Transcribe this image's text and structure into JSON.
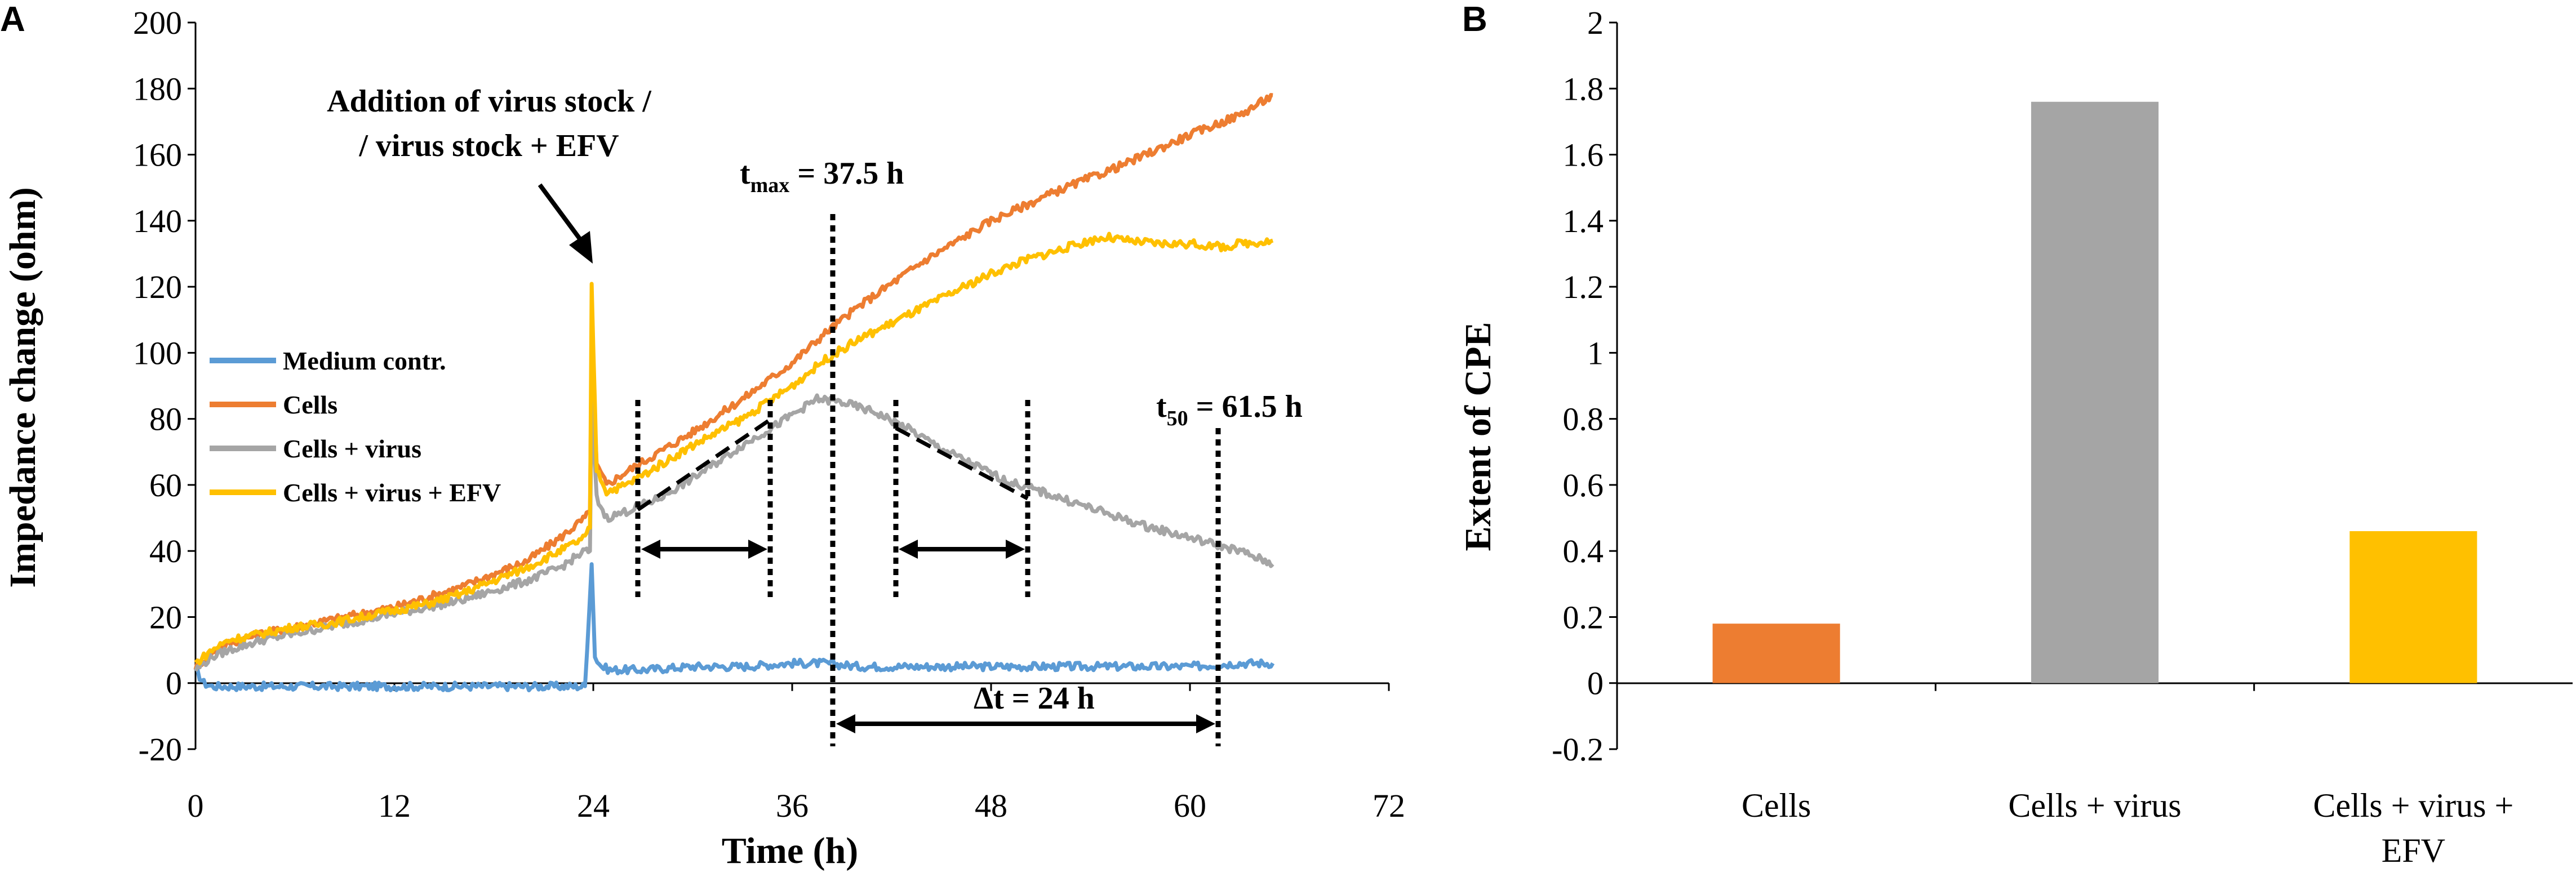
{
  "chart_data": [
    {
      "panel": "A",
      "type": "line",
      "xlabel": "Time (h)",
      "ylabel": "Impedance change (ohm)",
      "xlim": [
        0,
        72
      ],
      "ylim": [
        -20,
        200
      ],
      "xticks": [
        "0",
        "12",
        "24",
        "36",
        "48",
        "60",
        "72"
      ],
      "yticks": [
        "-20",
        "0",
        "20",
        "40",
        "60",
        "80",
        "100",
        "120",
        "140",
        "160",
        "180",
        "200"
      ],
      "legend_position": "middle-left",
      "series": [
        {
          "name": "Medium contr.",
          "color": "#5B9BD5",
          "x": [
            0,
            0.5,
            1,
            2,
            4,
            6,
            8,
            10,
            12,
            14,
            16,
            18,
            20,
            22,
            23.5,
            23.9,
            24.1,
            24.5,
            25,
            27,
            30,
            33,
            36,
            38,
            40,
            44,
            48,
            52,
            56,
            60,
            63,
            65
          ],
          "y": [
            4,
            0,
            -1,
            -1,
            -1,
            -1,
            -1,
            -1,
            -1,
            -1,
            -1,
            -1,
            -1,
            -1,
            -1,
            36,
            8,
            5,
            4,
            4,
            5,
            5,
            6,
            6,
            5,
            5,
            5,
            5,
            5,
            5,
            6,
            6
          ]
        },
        {
          "name": "Cells",
          "color": "#ED7D31",
          "x": [
            0,
            1,
            2,
            4,
            6,
            8,
            10,
            12,
            14,
            16,
            18,
            20,
            22,
            23.5,
            23.8,
            23.9,
            24.2,
            24.8,
            26,
            28,
            30,
            33,
            36,
            38,
            40,
            44,
            48,
            52,
            56,
            60,
            63,
            65
          ],
          "y": [
            5,
            9,
            12,
            15,
            17,
            19,
            21,
            23,
            26,
            29,
            33,
            37,
            44,
            50,
            52,
            103,
            66,
            60,
            64,
            70,
            76,
            86,
            97,
            106,
            114,
            128,
            140,
            149,
            157,
            166,
            172,
            178
          ]
        },
        {
          "name": "Cells + virus",
          "color": "#A5A5A5",
          "x": [
            0,
            1,
            2,
            4,
            6,
            8,
            10,
            12,
            14,
            16,
            18,
            20,
            22,
            23.5,
            23.8,
            23.9,
            24.2,
            24.8,
            26,
            28,
            30,
            33,
            35,
            37.5,
            39,
            41,
            43,
            45,
            47,
            49,
            51,
            54,
            57,
            60,
            63,
            65
          ],
          "y": [
            4,
            8,
            10,
            13,
            15,
            17,
            19,
            21,
            23,
            25,
            28,
            31,
            35,
            40,
            40,
            87,
            56,
            50,
            52,
            56,
            62,
            72,
            78,
            86,
            85,
            82,
            77,
            71,
            66,
            61,
            58,
            53,
            48,
            44,
            40,
            36
          ]
        },
        {
          "name": "Cells + virus + EFV",
          "color": "#FFC000",
          "x": [
            0,
            1,
            2,
            4,
            6,
            8,
            10,
            12,
            14,
            16,
            18,
            20,
            22,
            23.5,
            23.8,
            23.9,
            24.2,
            24.8,
            26,
            28,
            30,
            33,
            36,
            38,
            40,
            44,
            48,
            50,
            52,
            54,
            55,
            56,
            58,
            60,
            62,
            63,
            65
          ],
          "y": [
            6,
            10,
            13,
            15,
            17,
            18,
            20,
            22,
            24,
            27,
            31,
            35,
            40,
            44,
            47,
            121,
            65,
            58,
            60,
            66,
            72,
            80,
            90,
            98,
            104,
            114,
            124,
            128,
            131,
            134,
            135,
            134,
            133,
            133,
            132,
            133,
            134
          ]
        }
      ],
      "annotations": {
        "addition_line1": "Addition of virus stock /",
        "addition_line2": "/ virus stock + EFV",
        "tmax_t": "t",
        "tmax_sub": "max",
        "tmax_value": " = 37.5 h",
        "t50_t": "t",
        "t50_sub": "50",
        "t50_value": " = 61.5 h",
        "delta_t": "Δt = 24 h"
      }
    },
    {
      "panel": "B",
      "type": "bar",
      "ylabel": "Extent of CPE",
      "ylim": [
        -0.2,
        2
      ],
      "yticks": [
        "-0.2",
        "0",
        "0.2",
        "0.4",
        "0.6",
        "0.8",
        "1",
        "1.2",
        "1.4",
        "1.6",
        "1.8",
        "2"
      ],
      "categories": [
        {
          "line1": "Cells",
          "line2": ""
        },
        {
          "line1": "Cells + virus",
          "line2": ""
        },
        {
          "line1": "Cells + virus +",
          "line2": "EFV"
        }
      ],
      "values": [
        0.18,
        1.76,
        0.46
      ],
      "colors": [
        "#ED7D31",
        "#A5A5A5",
        "#FFC000"
      ]
    }
  ]
}
